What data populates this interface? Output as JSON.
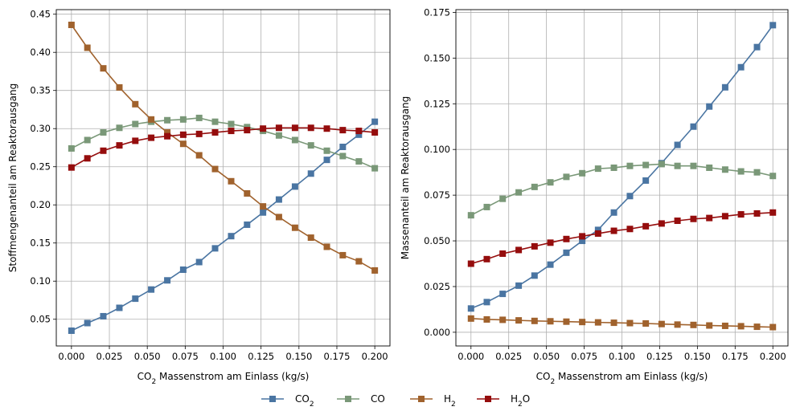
{
  "chart_data": [
    {
      "type": "line",
      "xlabel": "CO₂ Massenstrom am Einlass (kg/s)",
      "ylabel": "Stoffmengenanteil am Reaktorausgang",
      "xlim": [
        -0.01,
        0.21
      ],
      "ylim": [
        0.015,
        0.456
      ],
      "xticks": [
        0.0,
        0.025,
        0.05,
        0.075,
        0.1,
        0.125,
        0.15,
        0.175,
        0.2
      ],
      "xtick_labels": [
        "0.000",
        "0.025",
        "0.050",
        "0.075",
        "0.100",
        "0.125",
        "0.150",
        "0.175",
        "0.200"
      ],
      "yticks": [
        0.05,
        0.1,
        0.15,
        0.2,
        0.25,
        0.3,
        0.35,
        0.4,
        0.45
      ],
      "ytick_labels": [
        "0.05",
        "0.10",
        "0.15",
        "0.20",
        "0.25",
        "0.30",
        "0.35",
        "0.40",
        "0.45"
      ],
      "grid": true,
      "x": [
        0.0,
        0.0105,
        0.021,
        0.0316,
        0.0421,
        0.0526,
        0.0632,
        0.0737,
        0.0842,
        0.0947,
        0.1053,
        0.1158,
        0.1263,
        0.1368,
        0.1474,
        0.1579,
        0.1684,
        0.1789,
        0.1895,
        0.2
      ],
      "series": [
        {
          "name": "CO₂",
          "values": [
            0.035,
            0.045,
            0.054,
            0.065,
            0.077,
            0.089,
            0.101,
            0.115,
            0.125,
            0.143,
            0.159,
            0.174,
            0.19,
            0.207,
            0.224,
            0.241,
            0.259,
            0.276,
            0.292,
            0.309
          ]
        },
        {
          "name": "CO",
          "values": [
            0.274,
            0.285,
            0.295,
            0.301,
            0.306,
            0.309,
            0.311,
            0.312,
            0.314,
            0.309,
            0.306,
            0.302,
            0.297,
            0.291,
            0.285,
            0.278,
            0.271,
            0.264,
            0.257,
            0.248
          ]
        },
        {
          "name": "H₂",
          "values": [
            0.436,
            0.406,
            0.379,
            0.354,
            0.332,
            0.312,
            0.295,
            0.28,
            0.265,
            0.247,
            0.231,
            0.215,
            0.198,
            0.184,
            0.17,
            0.157,
            0.145,
            0.134,
            0.126,
            0.114
          ]
        },
        {
          "name": "H₂O",
          "values": [
            0.249,
            0.261,
            0.271,
            0.278,
            0.284,
            0.288,
            0.29,
            0.292,
            0.293,
            0.295,
            0.297,
            0.298,
            0.3,
            0.301,
            0.301,
            0.301,
            0.3,
            0.298,
            0.297,
            0.295
          ]
        }
      ]
    },
    {
      "type": "line",
      "xlabel": "CO₂ Massenstrom am Einlass (kg/s)",
      "ylabel": "Massenanteil am Reaktorausgang",
      "xlim": [
        -0.01,
        0.21
      ],
      "ylim": [
        -0.0075,
        0.1765
      ],
      "xticks": [
        0.0,
        0.025,
        0.05,
        0.075,
        0.1,
        0.125,
        0.15,
        0.175,
        0.2
      ],
      "xtick_labels": [
        "0.000",
        "0.025",
        "0.050",
        "0.075",
        "0.100",
        "0.125",
        "0.150",
        "0.175",
        "0.200"
      ],
      "yticks": [
        0.0,
        0.025,
        0.05,
        0.075,
        0.1,
        0.125,
        0.15,
        0.175
      ],
      "ytick_labels": [
        "0.000",
        "0.025",
        "0.050",
        "0.075",
        "0.100",
        "0.125",
        "0.150",
        "0.175"
      ],
      "grid": true,
      "x": [
        0.0,
        0.0105,
        0.021,
        0.0316,
        0.0421,
        0.0526,
        0.0632,
        0.0737,
        0.0842,
        0.0947,
        0.1053,
        0.1158,
        0.1263,
        0.1368,
        0.1474,
        0.1579,
        0.1684,
        0.1789,
        0.1895,
        0.2
      ],
      "series": [
        {
          "name": "CO₂",
          "values": [
            0.013,
            0.0165,
            0.021,
            0.0255,
            0.031,
            0.037,
            0.0435,
            0.05,
            0.056,
            0.0655,
            0.0745,
            0.083,
            0.0925,
            0.1025,
            0.1125,
            0.1235,
            0.134,
            0.145,
            0.156,
            0.168
          ]
        },
        {
          "name": "CO",
          "values": [
            0.064,
            0.0685,
            0.073,
            0.0765,
            0.0795,
            0.082,
            0.085,
            0.087,
            0.0895,
            0.09,
            0.091,
            0.0915,
            0.092,
            0.091,
            0.091,
            0.09,
            0.089,
            0.088,
            0.0875,
            0.0855
          ]
        },
        {
          "name": "H₂",
          "values": [
            0.0075,
            0.007,
            0.0068,
            0.0065,
            0.0062,
            0.006,
            0.0058,
            0.0056,
            0.0054,
            0.0052,
            0.005,
            0.0048,
            0.0045,
            0.0042,
            0.004,
            0.0037,
            0.0035,
            0.0033,
            0.003,
            0.0028
          ]
        },
        {
          "name": "H₂O",
          "values": [
            0.0375,
            0.04,
            0.043,
            0.045,
            0.047,
            0.049,
            0.051,
            0.0525,
            0.054,
            0.0555,
            0.0565,
            0.058,
            0.0595,
            0.061,
            0.062,
            0.0625,
            0.0635,
            0.0645,
            0.065,
            0.0655
          ]
        }
      ]
    }
  ],
  "legend": {
    "location": "bottom-center",
    "entries": [
      {
        "label": "CO₂",
        "color": "#4a75a2"
      },
      {
        "label": "CO",
        "color": "#7a9878"
      },
      {
        "label": "H₂",
        "color": "#a0622d"
      },
      {
        "label": "H₂O",
        "color": "#950d0d"
      }
    ]
  },
  "colors": {
    "series": [
      "#4a75a2",
      "#7a9878",
      "#a0622d",
      "#950d0d"
    ],
    "grid": "#b0b0b0",
    "axis": "#000000"
  }
}
